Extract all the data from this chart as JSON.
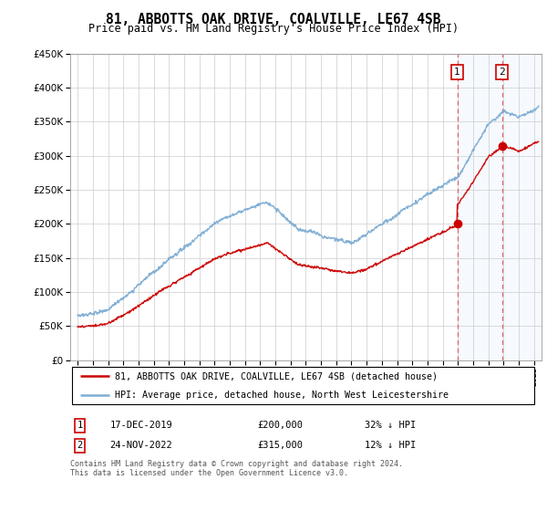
{
  "title": "81, ABBOTTS OAK DRIVE, COALVILLE, LE67 4SB",
  "subtitle": "Price paid vs. HM Land Registry's House Price Index (HPI)",
  "ytick_values": [
    0,
    50000,
    100000,
    150000,
    200000,
    250000,
    300000,
    350000,
    400000,
    450000
  ],
  "xmin": 1994.5,
  "xmax": 2025.5,
  "ymin": 0,
  "ymax": 450000,
  "red_line_color": "#cc0000",
  "blue_line_color": "#7dadd4",
  "sale1_date": "17-DEC-2019",
  "sale1_price": 200000,
  "sale1_x": 2019.96,
  "sale1_pct": "32% ↓ HPI",
  "sale2_date": "24-NOV-2022",
  "sale2_price": 315000,
  "sale2_x": 2022.9,
  "sale2_pct": "12% ↓ HPI",
  "legend_line1": "81, ABBOTTS OAK DRIVE, COALVILLE, LE67 4SB (detached house)",
  "legend_line2": "HPI: Average price, detached house, North West Leicestershire",
  "footer": "Contains HM Land Registry data © Crown copyright and database right 2024.\nThis data is licensed under the Open Government Licence v3.0.",
  "shaded_region_start": 2019.96,
  "dashed_line1_x": 2019.96,
  "dashed_line2_x": 2022.9,
  "n_points": 1000,
  "hpi_seed": 10,
  "red_seed": 20
}
